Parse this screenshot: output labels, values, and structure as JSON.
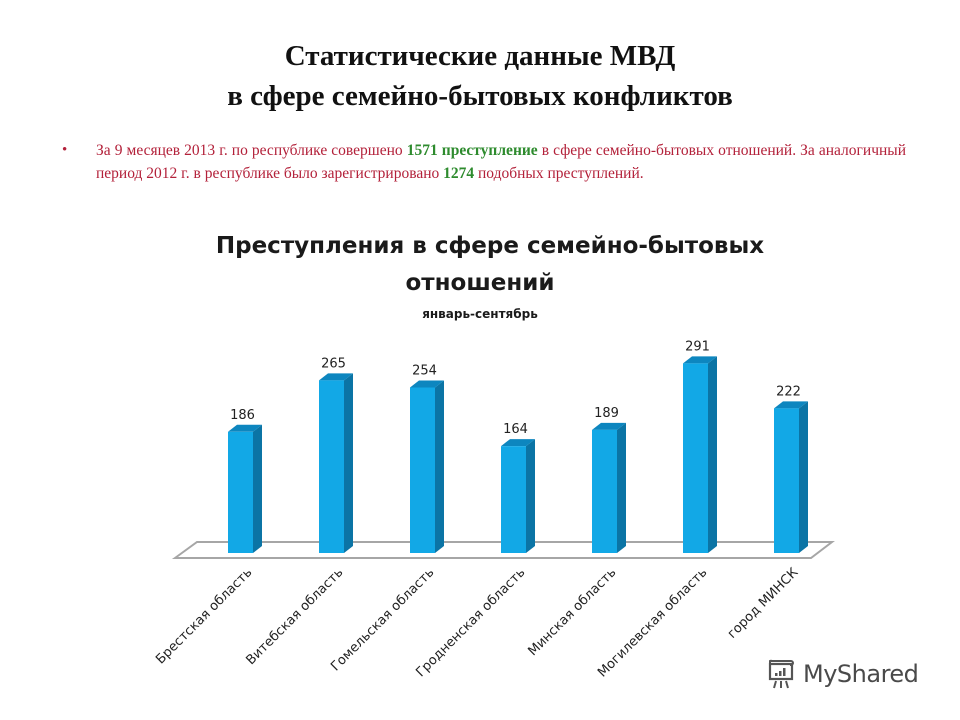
{
  "slide": {
    "title_line1": "Статистические данные МВД",
    "title_line2": "в сфере семейно-бытовых конфликктов"
  },
  "bullet": {
    "text_part1": "За 9 месяцев 2013 г. по республике совершено ",
    "highlight1": "1571 преступление",
    "text_part2": " в сфере семейно-бытовых отношений. За аналогичный период 2012 г. в республике было зарегистрировано ",
    "highlight2": "1274",
    "text_part3": " подобных преступлений."
  },
  "colors": {
    "bullet_text": "#b3213a",
    "highlight": "#2e8b2e",
    "bar_front": "#12a8e6",
    "bar_side": "#0b74a5",
    "bar_top": "#0d86bf",
    "floor_line": "#a6a6a6"
  },
  "watermark": {
    "text": "MyShared",
    "icon": "presentation-board-icon"
  },
  "chart_data": {
    "type": "bar",
    "title": "Преступления в сфере семейно-бытовых отношений",
    "title_line1": "Преступления в сфере семейно-бытовых",
    "title_line2": "отношений",
    "subtitle": "январь-сентябрь",
    "xlabel": "",
    "ylabel": "",
    "categories": [
      "Брестская область",
      "Витебская область",
      "Гомельская область",
      "Гродненская область",
      "Минская область",
      "Могилевская область",
      "город  МИНСК"
    ],
    "values": [
      186,
      265,
      254,
      164,
      189,
      291,
      222
    ],
    "ylim": [
      0,
      300
    ],
    "grid": false,
    "legend": false,
    "data_labels": true,
    "style": "3d-column"
  }
}
